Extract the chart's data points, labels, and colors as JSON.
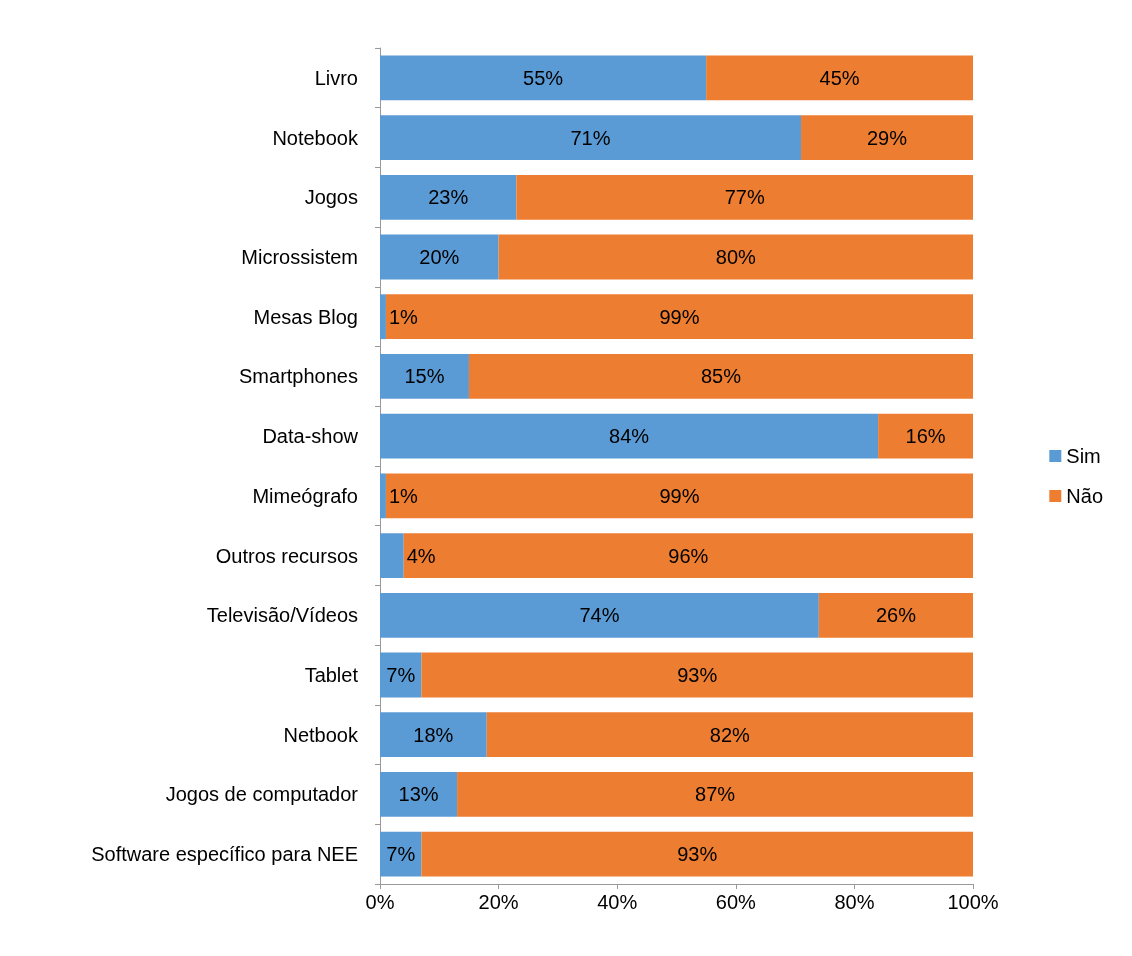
{
  "chart_data": {
    "type": "bar",
    "orientation": "horizontal",
    "stacked": true,
    "categories": [
      "Livro",
      "Notebook",
      "Jogos",
      "Microssistem",
      "Mesas Blog",
      "Smartphones",
      "Data-show",
      "Mimeógrafo",
      "Outros recursos",
      "Televisão/Vídeos",
      "Tablet",
      "Netbook",
      "Jogos de computador",
      "Software específico para NEE"
    ],
    "series": [
      {
        "name": "Sim",
        "color": "#5b9bd5",
        "values": [
          55,
          71,
          23,
          20,
          1,
          15,
          84,
          1,
          4,
          74,
          7,
          18,
          13,
          7
        ],
        "value_labels": [
          "55%",
          "71%",
          "23%",
          "20%",
          "1%",
          "15%",
          "84%",
          "1%",
          "4%",
          "74%",
          "7%",
          "18%",
          "13%",
          "7%"
        ]
      },
      {
        "name": "Não",
        "color": "#ed7d31",
        "values": [
          45,
          29,
          77,
          80,
          99,
          85,
          16,
          99,
          96,
          26,
          93,
          82,
          87,
          93
        ],
        "value_labels": [
          "45%",
          "29%",
          "77%",
          "80%",
          "99%",
          "85%",
          "16%",
          "99%",
          "96%",
          "26%",
          "93%",
          "82%",
          "87%",
          "93%"
        ]
      }
    ],
    "xlim": [
      0,
      100
    ],
    "xticks": [
      {
        "value": 0,
        "label": "0%"
      },
      {
        "value": 20,
        "label": "20%"
      },
      {
        "value": 40,
        "label": "40%"
      },
      {
        "value": 60,
        "label": "60%"
      },
      {
        "value": 80,
        "label": "80%"
      },
      {
        "value": 100,
        "label": "100%"
      }
    ],
    "legend": "right",
    "grid": false
  }
}
